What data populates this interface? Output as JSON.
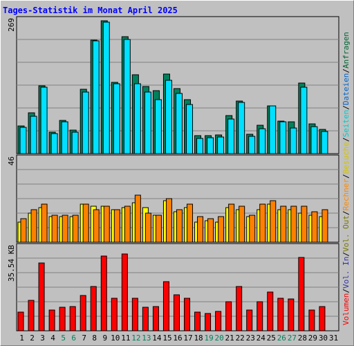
{
  "title": "Tages-Statistik im Monat April 2025",
  "right_label": {
    "anfragen": "Anfragen",
    "dateien": "Dateien",
    "seiten": "Seiten",
    "besuche": "Besuche",
    "rechner": "Rechner",
    "vol_out": "Vol. Out",
    "vol_in": "Vol. In",
    "volumen": "Volumen",
    "sep": "/"
  },
  "colors": {
    "hits": "#00805c",
    "files": "#00e0ff",
    "visits": "#ffff00",
    "sites": "#ff8000",
    "kbytes": "#ff0000",
    "weekend_day": "#00805c",
    "weekday": "#000000",
    "background": "#c0c0c0"
  },
  "chart_data": [
    {
      "type": "bar",
      "panel": "top",
      "ymax_label": "269",
      "ylim": [
        0,
        269
      ],
      "series": [
        {
          "name": "Anfragen",
          "values": [
            56,
            82,
            138,
            43,
            67,
            47,
            130,
            230,
            269,
            145,
            237,
            160,
            136,
            128,
            161,
            132,
            109,
            37,
            36,
            38,
            77,
            107,
            39,
            57,
            97,
            66,
            65,
            143,
            60,
            49
          ]
        },
        {
          "name": "Dateien",
          "values": [
            53,
            76,
            135,
            41,
            64,
            43,
            125,
            228,
            266,
            142,
            231,
            141,
            124,
            109,
            149,
            122,
            99,
            31,
            32,
            33,
            70,
            104,
            35,
            51,
            96,
            64,
            52,
            135,
            55,
            45
          ]
        }
      ]
    },
    {
      "type": "bar",
      "panel": "middle",
      "ymax_label": "46",
      "ylim": [
        0,
        46
      ],
      "series": [
        {
          "name": "Besuche",
          "values": [
            11,
            16,
            19,
            14,
            14,
            14,
            21,
            20,
            20,
            18,
            19,
            22,
            19,
            15,
            23,
            17,
            19,
            11,
            12,
            11,
            19,
            18,
            14,
            18,
            21,
            18,
            18,
            16,
            15,
            14
          ]
        },
        {
          "name": "Rechner",
          "values": [
            13,
            18,
            21,
            15,
            15,
            15,
            21,
            18,
            20,
            18,
            20,
            26,
            16,
            15,
            24,
            18,
            21,
            14,
            13,
            14,
            21,
            20,
            15,
            21,
            23,
            20,
            20,
            20,
            17,
            18
          ]
        }
      ]
    },
    {
      "type": "bar",
      "panel": "bottom",
      "ymax_label": "35.54 KB",
      "ylim": [
        0,
        35.54
      ],
      "series": [
        {
          "name": "Volumen",
          "values": [
            8.0,
            13.0,
            29.0,
            9.0,
            10.0,
            10.5,
            15.0,
            19.0,
            32.0,
            14.0,
            33.0,
            14.0,
            10.0,
            10.5,
            21.0,
            15.5,
            14.0,
            8.0,
            7.5,
            8.3,
            12.5,
            19.0,
            9.0,
            12.5,
            16.5,
            14.0,
            13.5,
            31.5,
            9.0,
            10.5
          ]
        }
      ]
    }
  ],
  "days": [
    1,
    2,
    3,
    4,
    5,
    6,
    7,
    8,
    9,
    10,
    11,
    12,
    13,
    14,
    15,
    16,
    17,
    18,
    19,
    20,
    21,
    22,
    23,
    24,
    25,
    26,
    27,
    28,
    29,
    30,
    31
  ],
  "weekend_days": [
    5,
    6,
    12,
    13,
    19,
    20,
    26,
    27
  ]
}
